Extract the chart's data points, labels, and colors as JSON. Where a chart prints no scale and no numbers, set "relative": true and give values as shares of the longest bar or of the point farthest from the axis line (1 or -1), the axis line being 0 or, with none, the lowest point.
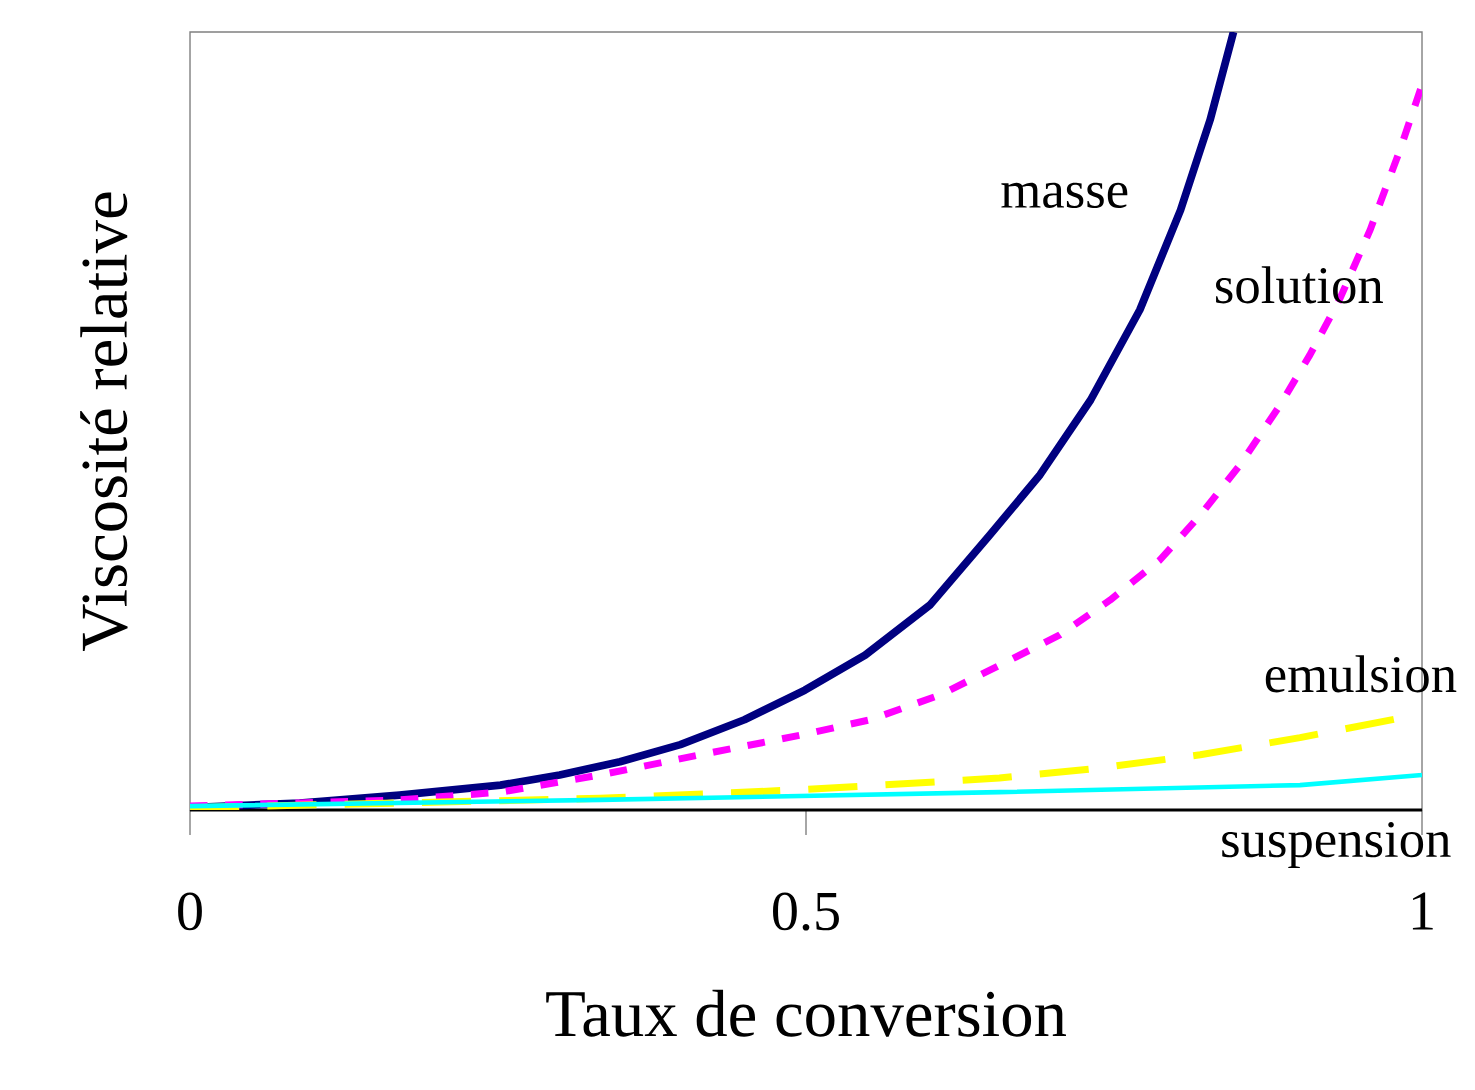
{
  "chart_data": {
    "type": "line",
    "relative": true,
    "xlabel": "Taux de conversion",
    "ylabel": "Viscosité relative",
    "xlim": [
      0,
      1
    ],
    "xticks": [
      0,
      0.5,
      1
    ],
    "grid": false,
    "series": [
      {
        "name": "masse",
        "color": "#000080",
        "line_style": "solid",
        "x": [
          0,
          0.089,
          0.17,
          0.252,
          0.3,
          0.349,
          0.398,
          0.45,
          0.499,
          0.548,
          0.601,
          0.649,
          0.69,
          0.731,
          0.771,
          0.804,
          0.828,
          0.847
        ],
        "values": [
          0.003,
          0.009,
          0.019,
          0.032,
          0.045,
          0.062,
          0.084,
          0.116,
          0.154,
          0.199,
          0.264,
          0.353,
          0.431,
          0.527,
          0.643,
          0.771,
          0.887,
          1.0
        ]
      },
      {
        "name": "solution",
        "color": "#ff00ff",
        "line_style": "dotted",
        "x": [
          0,
          0.089,
          0.17,
          0.252,
          0.333,
          0.414,
          0.495,
          0.552,
          0.609,
          0.657,
          0.706,
          0.747,
          0.787,
          0.82,
          0.852,
          0.885,
          0.909,
          0.933,
          0.958,
          0.982,
          1.0
        ],
        "values": [
          0.005,
          0.009,
          0.013,
          0.023,
          0.045,
          0.071,
          0.096,
          0.116,
          0.148,
          0.186,
          0.225,
          0.27,
          0.321,
          0.379,
          0.443,
          0.521,
          0.585,
          0.656,
          0.746,
          0.848,
          0.932
        ]
      },
      {
        "name": "emulsion",
        "color": "#ffff00",
        "line_style": "dashed",
        "x": [
          0,
          0.17,
          0.333,
          0.495,
          0.657,
          0.739,
          0.82,
          0.901,
          0.982
        ],
        "values": [
          0.003,
          0.009,
          0.015,
          0.026,
          0.041,
          0.054,
          0.071,
          0.093,
          0.118
        ]
      },
      {
        "name": "suspension",
        "color": "#00ffff",
        "line_style": "solid",
        "x": [
          0,
          0.333,
          0.657,
          0.901,
          1.0
        ],
        "values": [
          0.005,
          0.013,
          0.023,
          0.032,
          0.045
        ]
      }
    ]
  }
}
